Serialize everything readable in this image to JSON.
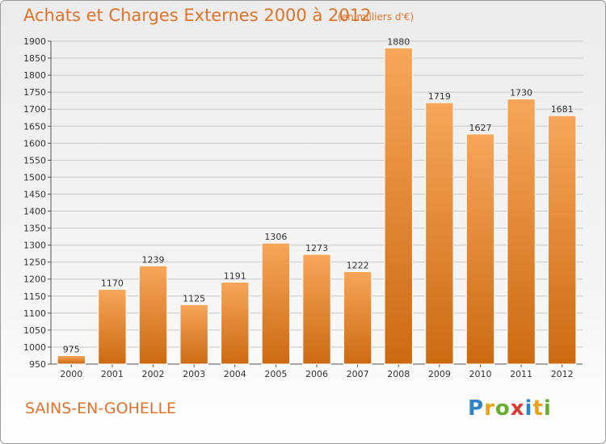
{
  "header": {
    "title": "Achats et Charges Externes 2000 à 2012",
    "subtitle": "(en milliers d'€)"
  },
  "footer": {
    "town": "SAINS-EN-GOHELLE",
    "logo": [
      "P",
      "r",
      "o",
      "x",
      "i",
      "t",
      "i"
    ]
  },
  "colors": {
    "bar_top": "#f7a65a",
    "bar_bottom": "#cc6a12",
    "title": "#e0732a",
    "grid": "#c8c8c8"
  },
  "chart_data": {
    "type": "bar",
    "title": "Achats et Charges Externes 2000 à 2012",
    "subtitle": "(en milliers d'€)",
    "categories": [
      "2000",
      "2001",
      "2002",
      "2003",
      "2004",
      "2005",
      "2006",
      "2007",
      "2008",
      "2009",
      "2010",
      "2011",
      "2012"
    ],
    "values": [
      975,
      1170,
      1239,
      1125,
      1191,
      1306,
      1273,
      1222,
      1880,
      1719,
      1627,
      1730,
      1681
    ],
    "data_labels": [
      "975",
      "1170",
      "1239",
      "1125",
      "1191",
      "1306",
      "1273",
      "1222",
      "1880",
      "1719",
      "1627",
      "1730",
      "1681"
    ],
    "ylim": [
      950,
      1900
    ],
    "yticks": [
      950,
      1000,
      1050,
      1100,
      1150,
      1200,
      1250,
      1300,
      1350,
      1400,
      1450,
      1500,
      1550,
      1600,
      1650,
      1700,
      1750,
      1800,
      1850,
      1900
    ],
    "xlabel": "",
    "ylabel": "",
    "grid": true,
    "legend": "none"
  }
}
